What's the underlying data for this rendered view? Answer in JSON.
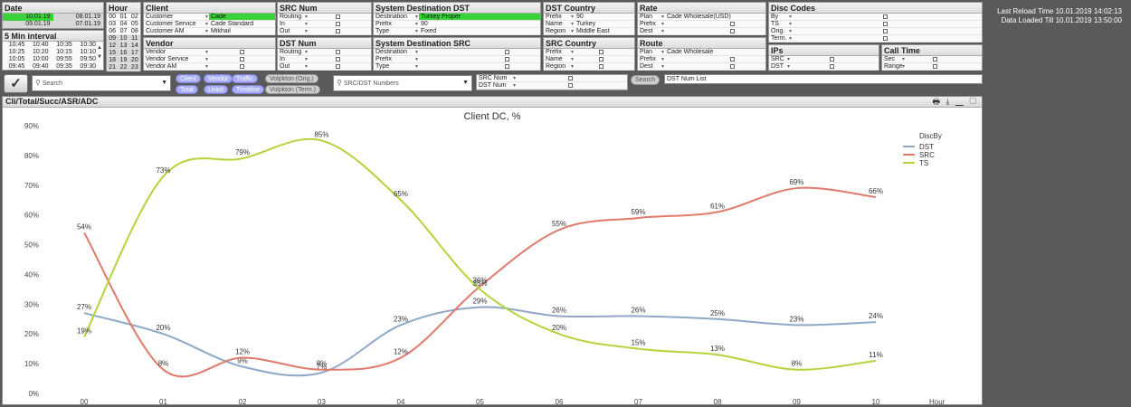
{
  "date": {
    "title": "Date",
    "rows": [
      [
        "10.01.19",
        "08.01.19"
      ],
      [
        "09.01.19",
        "07.01.19"
      ]
    ]
  },
  "interval": {
    "title": "5 Min interval",
    "rows": [
      [
        "10:45",
        "10:40",
        "10:35",
        "10:30"
      ],
      [
        "10:25",
        "10:20",
        "10:15",
        "10:10"
      ],
      [
        "10:05",
        "10:00",
        "09:55",
        "09:50"
      ],
      [
        "09:45",
        "09:40",
        "09:35",
        "09:30"
      ]
    ]
  },
  "hour": {
    "title": "Hour",
    "cells": [
      "00",
      "01",
      "02",
      "03",
      "04",
      "05",
      "06",
      "07",
      "08",
      "09",
      "10",
      "11",
      "12",
      "13",
      "14",
      "15",
      "16",
      "17",
      "18",
      "19",
      "20",
      "21",
      "22",
      "23"
    ]
  },
  "client": {
    "title": "Client",
    "rows": [
      {
        "label": "Customer",
        "value": "Cade",
        "selected": true
      },
      {
        "label": "Customer Service",
        "value": "Cade Standard"
      },
      {
        "label": "Customer AM",
        "value": "Mikhail"
      }
    ]
  },
  "vendor": {
    "title": "Vendor",
    "rows": [
      {
        "label": "Vendor"
      },
      {
        "label": "Vendor Service"
      },
      {
        "label": "Vendor AM"
      }
    ]
  },
  "src_num": {
    "title": "SRC Num",
    "rows": [
      {
        "label": "Routing"
      },
      {
        "label": "In"
      },
      {
        "label": "Out"
      }
    ]
  },
  "dst_num": {
    "title": "DST Num",
    "rows": [
      {
        "label": "Routing"
      },
      {
        "label": "In"
      },
      {
        "label": "Out"
      }
    ]
  },
  "sys_dst": {
    "title": "System Destination DST",
    "rows": [
      {
        "label": "Destination",
        "value": "Turkey Proper",
        "selected": true
      },
      {
        "label": "Prefix",
        "value": "90"
      },
      {
        "label": "Type",
        "value": "Fixed"
      }
    ]
  },
  "sys_src": {
    "title": "System Destination SRC",
    "rows": [
      {
        "label": "Destination"
      },
      {
        "label": "Prefix"
      },
      {
        "label": "Type"
      }
    ]
  },
  "dst_country": {
    "title": "DST Country",
    "rows": [
      {
        "label": "Prefix",
        "value": "90"
      },
      {
        "label": "Name",
        "value": "Turkey"
      },
      {
        "label": "Region",
        "value": "Middle East"
      }
    ]
  },
  "src_country": {
    "title": "SRC Country",
    "rows": [
      {
        "label": "Prefix"
      },
      {
        "label": "Name"
      },
      {
        "label": "Region"
      }
    ]
  },
  "rate": {
    "title": "Rate",
    "rows": [
      {
        "label": "Plan",
        "value": "Cade  Wholesale(USD)"
      },
      {
        "label": "Prefix"
      },
      {
        "label": "Dest"
      }
    ]
  },
  "route": {
    "title": "Route",
    "rows": [
      {
        "label": "Plan",
        "value": "Cade  Wholesale"
      },
      {
        "label": "Prefix"
      },
      {
        "label": "Dest"
      }
    ]
  },
  "disc_codes": {
    "title": "Disc Codes",
    "rows": [
      {
        "label": "By"
      },
      {
        "label": "TS"
      },
      {
        "label": "Orig."
      },
      {
        "label": "Term."
      }
    ]
  },
  "ips": {
    "title": "IPs",
    "rows": [
      {
        "label": "SRC"
      },
      {
        "label": "DST"
      }
    ]
  },
  "call_time": {
    "title": "Call Time",
    "rows": [
      {
        "label": "Sec"
      },
      {
        "label": "Range"
      }
    ]
  },
  "toolbar": {
    "search_placeholder": "Search",
    "pills_row1": [
      "Client",
      "Vendor",
      "Traffic",
      "Volpkton (Orig.)"
    ],
    "pills_row2": [
      "Total",
      "Least",
      "Timeline",
      "Volpkton (Term.)"
    ],
    "numbers_placeholder": "SRC/DST Numbers",
    "src_num_label": "SRC Num",
    "dst_num_label": "DST Num",
    "search_button": "Search",
    "dst_num_list": "DST Num List"
  },
  "info": {
    "reload": "Last Reload Time 10.01.2019 14:02:13",
    "loaded": "Data Loaded Till 10.01.2019 13:50:00"
  },
  "chart_panel": {
    "title": "Cli/Total/Succ/ASR/ADC",
    "icons": "🖶 ⤓ ▁ ▢"
  },
  "chart_data": {
    "type": "line",
    "title": "Client DC, %",
    "xlabel": "Hour",
    "legend_title": "DiscBy",
    "legend_position": "top-right",
    "categories": [
      "00",
      "01",
      "02",
      "03",
      "04",
      "05",
      "06",
      "07",
      "08",
      "09",
      "10"
    ],
    "ylim": [
      0,
      90
    ],
    "yticks": [
      0,
      10,
      20,
      30,
      40,
      50,
      60,
      70,
      80,
      90
    ],
    "series": [
      {
        "name": "DST",
        "color": "#8fa8c8",
        "values": [
          27,
          20,
          9,
          7,
          23,
          29,
          26,
          26,
          25,
          23,
          24
        ],
        "labels": [
          "27%",
          "20%",
          "9%",
          "7%",
          "23%",
          "29%",
          "26%",
          "26%",
          "25%",
          "23%",
          "24%"
        ]
      },
      {
        "name": "SRC",
        "color": "#e07a6a",
        "values": [
          54,
          8,
          12,
          8,
          12,
          36,
          55,
          59,
          61,
          69,
          66
        ],
        "labels": [
          "54%",
          "8%",
          "12%",
          "8%",
          "12%",
          "36%",
          "55%",
          "59%",
          "61%",
          "69%",
          "66%"
        ]
      },
      {
        "name": "TS",
        "color": "#b3d43a",
        "values": [
          19,
          73,
          79,
          85,
          65,
          35,
          20,
          15,
          13,
          8,
          11
        ],
        "labels": [
          "19%",
          "73%",
          "79%",
          "85%",
          "65%",
          "35%",
          "20%",
          "15%",
          "13%",
          "8%",
          "11%"
        ]
      }
    ]
  }
}
